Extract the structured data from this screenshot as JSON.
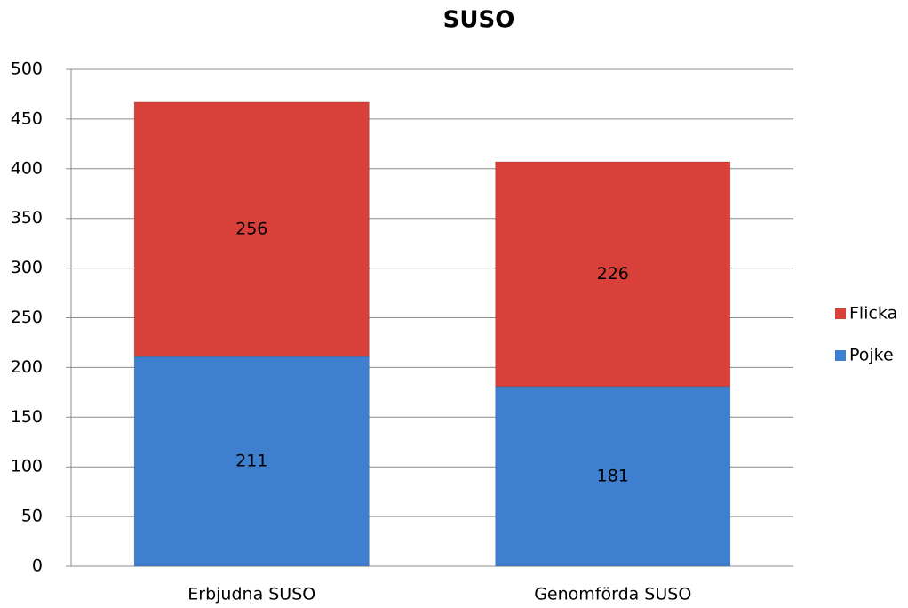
{
  "chart_data": {
    "type": "stacked_bar",
    "title": "SUSO",
    "categories": [
      "Erbjudna SUSO",
      "Genomförda SUSO"
    ],
    "series": [
      {
        "name": "Pojke",
        "color": "#3f7fd0",
        "values": [
          211,
          181
        ]
      },
      {
        "name": "Flicka",
        "color": "#d9403a",
        "values": [
          256,
          226
        ]
      }
    ],
    "ylim": [
      0,
      500
    ],
    "yticks": [
      0,
      50,
      100,
      150,
      200,
      250,
      300,
      350,
      400,
      450,
      500
    ],
    "grid": true,
    "legend": "right"
  }
}
